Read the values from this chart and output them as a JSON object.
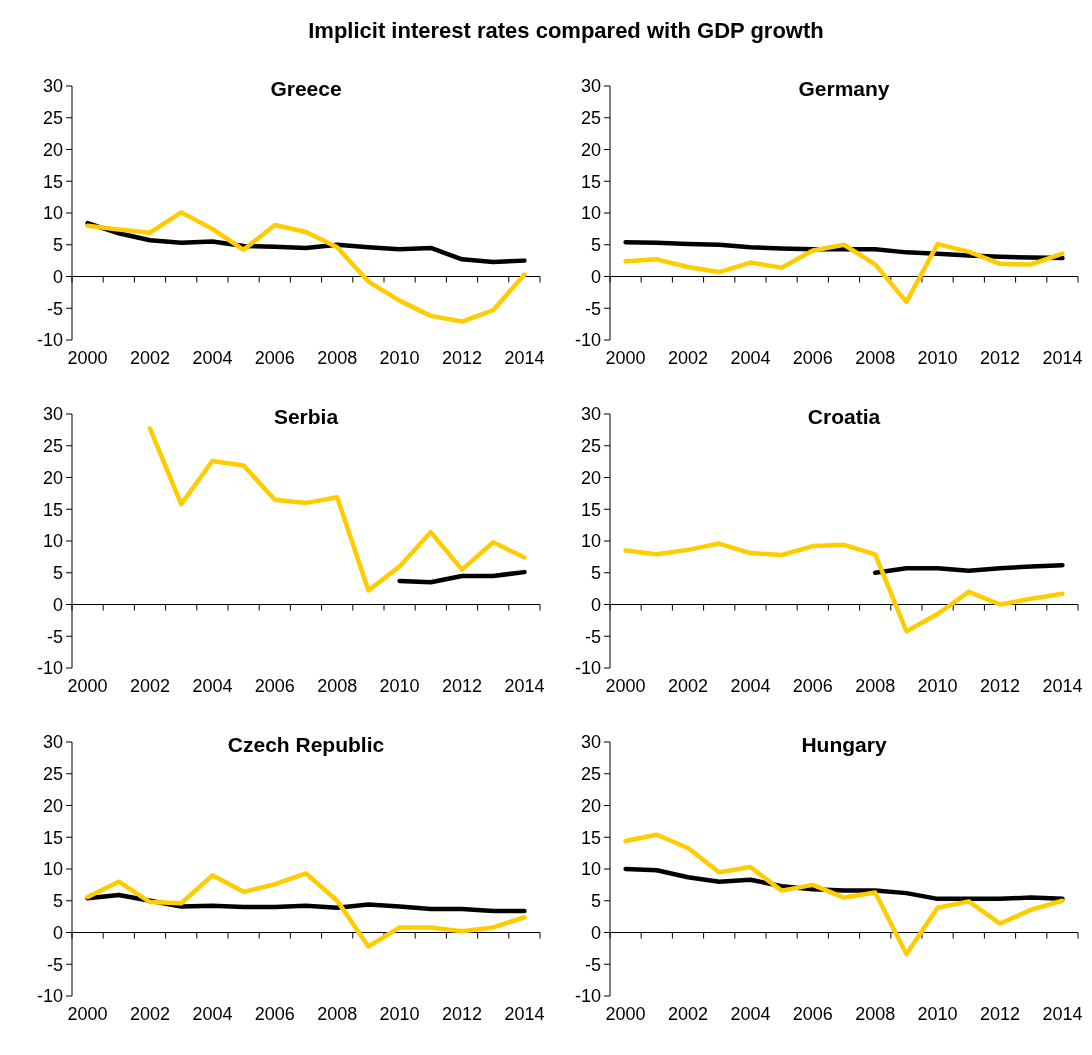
{
  "chart_data": [
    {
      "type": "line",
      "title": "Greece",
      "annotations": [
        "Implicit interest rates compared with GDP growth"
      ],
      "categories": [
        "2000",
        null,
        "2002",
        null,
        "2004",
        null,
        "2006",
        null,
        "2008",
        null,
        "2010",
        null,
        "2012",
        null,
        "2014"
      ],
      "ylim": [
        -10,
        30
      ],
      "yticks": [
        -10,
        -5,
        0,
        5,
        10,
        15,
        20,
        25,
        30
      ],
      "series": [
        {
          "color": "#000000",
          "values": [
            8.4,
            6.8,
            5.7,
            5.3,
            5.5,
            4.8,
            4.7,
            4.5,
            5.0,
            4.6,
            4.3,
            4.5,
            2.7,
            2.3,
            2.5
          ]
        },
        {
          "color": "#ffcc00",
          "values": [
            8.0,
            7.4,
            6.9,
            10.1,
            7.5,
            4.2,
            8.1,
            7.0,
            4.6,
            -0.8,
            -3.8,
            -6.2,
            -7.1,
            -5.3,
            0.3
          ]
        }
      ]
    },
    {
      "type": "line",
      "title": "Germany",
      "categories": [
        "2000",
        null,
        "2002",
        null,
        "2004",
        null,
        "2006",
        null,
        "2008",
        null,
        "2010",
        null,
        "2012",
        null,
        "2014"
      ],
      "ylim": [
        -10,
        30
      ],
      "yticks": [
        -10,
        -5,
        0,
        5,
        10,
        15,
        20,
        25,
        30
      ],
      "series": [
        {
          "color": "#000000",
          "values": [
            5.4,
            5.3,
            5.1,
            5.0,
            4.6,
            4.4,
            4.3,
            4.3,
            4.3,
            3.8,
            3.6,
            3.3,
            3.1,
            3.0,
            2.9
          ]
        },
        {
          "color": "#ffcc00",
          "values": [
            2.4,
            2.7,
            1.5,
            0.7,
            2.2,
            1.4,
            4.1,
            5.0,
            1.9,
            -4.0,
            5.1,
            3.9,
            2.0,
            1.9,
            3.6
          ]
        }
      ]
    },
    {
      "type": "line",
      "title": "Serbia",
      "categories": [
        "2000",
        null,
        "2002",
        null,
        "2004",
        null,
        "2006",
        null,
        "2008",
        null,
        "2010",
        null,
        "2012",
        null,
        "2014"
      ],
      "ylim": [
        -10,
        30
      ],
      "yticks": [
        -10,
        -5,
        0,
        5,
        10,
        15,
        20,
        25,
        30
      ],
      "series": [
        {
          "color": "#000000",
          "values": [
            null,
            null,
            null,
            null,
            null,
            null,
            null,
            null,
            null,
            null,
            3.7,
            3.5,
            4.5,
            4.5,
            5.1
          ]
        },
        {
          "color": "#ffcc00",
          "values": [
            null,
            null,
            27.7,
            15.8,
            22.6,
            21.9,
            16.5,
            16.0,
            16.9,
            2.2,
            6.0,
            11.4,
            5.5,
            9.8,
            7.4
          ]
        }
      ]
    },
    {
      "type": "line",
      "title": "Croatia",
      "categories": [
        "2000",
        null,
        "2002",
        null,
        "2004",
        null,
        "2006",
        null,
        "2008",
        null,
        "2010",
        null,
        "2012",
        null,
        "2014"
      ],
      "ylim": [
        -10,
        30
      ],
      "yticks": [
        -10,
        -5,
        0,
        5,
        10,
        15,
        20,
        25,
        30
      ],
      "series": [
        {
          "color": "#000000",
          "values": [
            null,
            null,
            null,
            null,
            null,
            null,
            null,
            null,
            5.0,
            5.7,
            5.7,
            5.3,
            5.7,
            6.0,
            6.2
          ]
        },
        {
          "color": "#ffcc00",
          "values": [
            8.5,
            7.9,
            8.6,
            9.6,
            8.1,
            7.8,
            9.2,
            9.4,
            7.9,
            -4.2,
            -1.5,
            2.0,
            0.0,
            0.9,
            1.7
          ]
        }
      ]
    },
    {
      "type": "line",
      "title": "Czech Republic",
      "categories": [
        "2000",
        null,
        "2002",
        null,
        "2004",
        null,
        "2006",
        null,
        "2008",
        null,
        "2010",
        null,
        "2012",
        null,
        "2014"
      ],
      "ylim": [
        -10,
        30
      ],
      "yticks": [
        -10,
        -5,
        0,
        5,
        10,
        15,
        20,
        25,
        30
      ],
      "series": [
        {
          "color": "#000000",
          "values": [
            5.4,
            5.9,
            5.0,
            4.1,
            4.2,
            4.0,
            4.0,
            4.2,
            3.9,
            4.4,
            4.1,
            3.7,
            3.7,
            3.4,
            3.4
          ]
        },
        {
          "color": "#ffcc00",
          "values": [
            5.6,
            8.0,
            4.8,
            4.6,
            9.0,
            6.4,
            7.6,
            9.3,
            5.0,
            -2.2,
            0.8,
            0.8,
            0.2,
            0.8,
            2.4
          ]
        }
      ]
    },
    {
      "type": "line",
      "title": "Hungary",
      "categories": [
        "2000",
        null,
        "2002",
        null,
        "2004",
        null,
        "2006",
        null,
        "2008",
        null,
        "2010",
        null,
        "2012",
        null,
        "2014"
      ],
      "ylim": [
        -10,
        30
      ],
      "yticks": [
        -10,
        -5,
        0,
        5,
        10,
        15,
        20,
        25,
        30
      ],
      "series": [
        {
          "color": "#000000",
          "values": [
            10.0,
            9.8,
            8.7,
            8.0,
            8.3,
            7.3,
            6.8,
            6.6,
            6.6,
            6.2,
            5.3,
            5.3,
            5.3,
            5.5,
            5.3
          ]
        },
        {
          "color": "#ffcc00",
          "values": [
            14.4,
            15.4,
            13.3,
            9.5,
            10.3,
            6.6,
            7.5,
            5.5,
            6.3,
            -3.4,
            3.9,
            4.9,
            1.4,
            3.6,
            5.0
          ]
        }
      ]
    }
  ]
}
